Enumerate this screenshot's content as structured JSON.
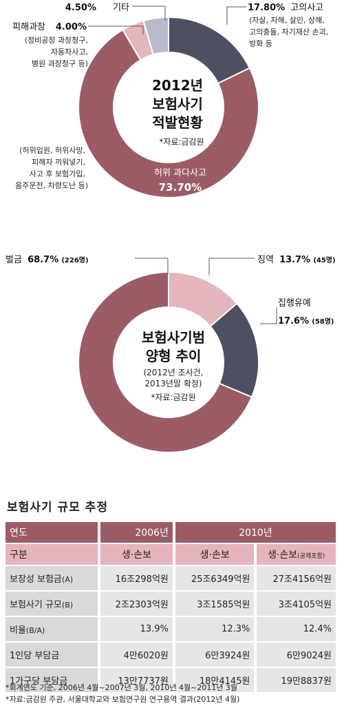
{
  "chart_data": [
    {
      "type": "pie",
      "title": "2012년 보험사기 적발현황",
      "title_lines": [
        "2012년",
        "보험사기",
        "적발현황"
      ],
      "source": "*자료:금감원",
      "colors": [
        "#4d5063",
        "#9c5c66",
        "#e4b5bb",
        "#b8b9c9"
      ],
      "slices": [
        {
          "label": "고의사고",
          "value_text": "17.80%",
          "value": 17.8,
          "details": [
            "(자살, 자해, 살인, 상해,",
            "고의충돌, 자기재산 손괴,",
            "방화 등"
          ]
        },
        {
          "label": "허위 과다사고",
          "value_text": "73.70%",
          "value": 73.7,
          "details": [
            "(허위입원, 허위사망,",
            "피해자 끼워넣기,",
            "사고 후 보험가입,",
            "음주운전, 차량도난 등)"
          ]
        },
        {
          "label": "피해과장",
          "value_text": "4.00%",
          "value": 4.0,
          "details": [
            "(정비공장 과장청구,",
            "자동차사고,",
            "병원 과장청구 등)"
          ]
        },
        {
          "label": "기타",
          "value_text": "4.50%",
          "value": 4.5,
          "details": []
        }
      ]
    },
    {
      "type": "pie",
      "title": "보험사기범 양형 추이",
      "title_lines": [
        "보험사기범",
        "양형 추이"
      ],
      "subtitle_lines": [
        "(2012년 조사건,",
        "2013년말 확정)"
      ],
      "source": "*자료:금감원",
      "colors": [
        "#e4b5bb",
        "#4d5063",
        "#9c5c66"
      ],
      "slices": [
        {
          "label": "징역",
          "value_text": "13.7%",
          "count": "(45명)",
          "value": 13.7
        },
        {
          "label": "집행유예",
          "value_text": "17.6%",
          "count": "(58명)",
          "value": 17.6
        },
        {
          "label": "벌금",
          "value_text": "68.7%",
          "count": "(226명)",
          "value": 68.7
        }
      ]
    },
    {
      "type": "table",
      "title": "보험사기 규모 추정",
      "header": {
        "col0": "연도",
        "y2006": "2006년",
        "y2010": "2010년"
      },
      "subheader": {
        "col0": "구분",
        "c1": "생·손보",
        "c2": "생·손보",
        "c3": "생·손보",
        "c3_small": "(공제포함)"
      },
      "rows": [
        {
          "label": "보장성 보험금",
          "label_small": "(A)",
          "v1": "16조298억원",
          "v2": "25조6349억원",
          "v3": "27조4156억원"
        },
        {
          "label": "보험사기 규모",
          "label_small": "(B)",
          "v1": "2조2303억원",
          "v2": "3조1585억원",
          "v3": "3조4105억원"
        },
        {
          "label": "비율",
          "label_small": "(B/A)",
          "v1": "13.9%",
          "v2": "12.3%",
          "v3": "12.4%"
        },
        {
          "label": "1인당 부담금",
          "label_small": "",
          "v1": "4만6020원",
          "v2": "6만3924원",
          "v3": "6만9024원"
        },
        {
          "label": "1가구당 부담금",
          "label_small": "",
          "v1": "13만7737원",
          "v2": "18만4145원",
          "v3": "19만8837원"
        }
      ],
      "notes": [
        "*회계연도 기준, 2006년 4월~2007년 3월, 2010년 4월~2011년 3월",
        "*자료:금감원 주관, 서울대학교와 보험연구원 연구용역 결과(2012년 4월)"
      ]
    }
  ]
}
